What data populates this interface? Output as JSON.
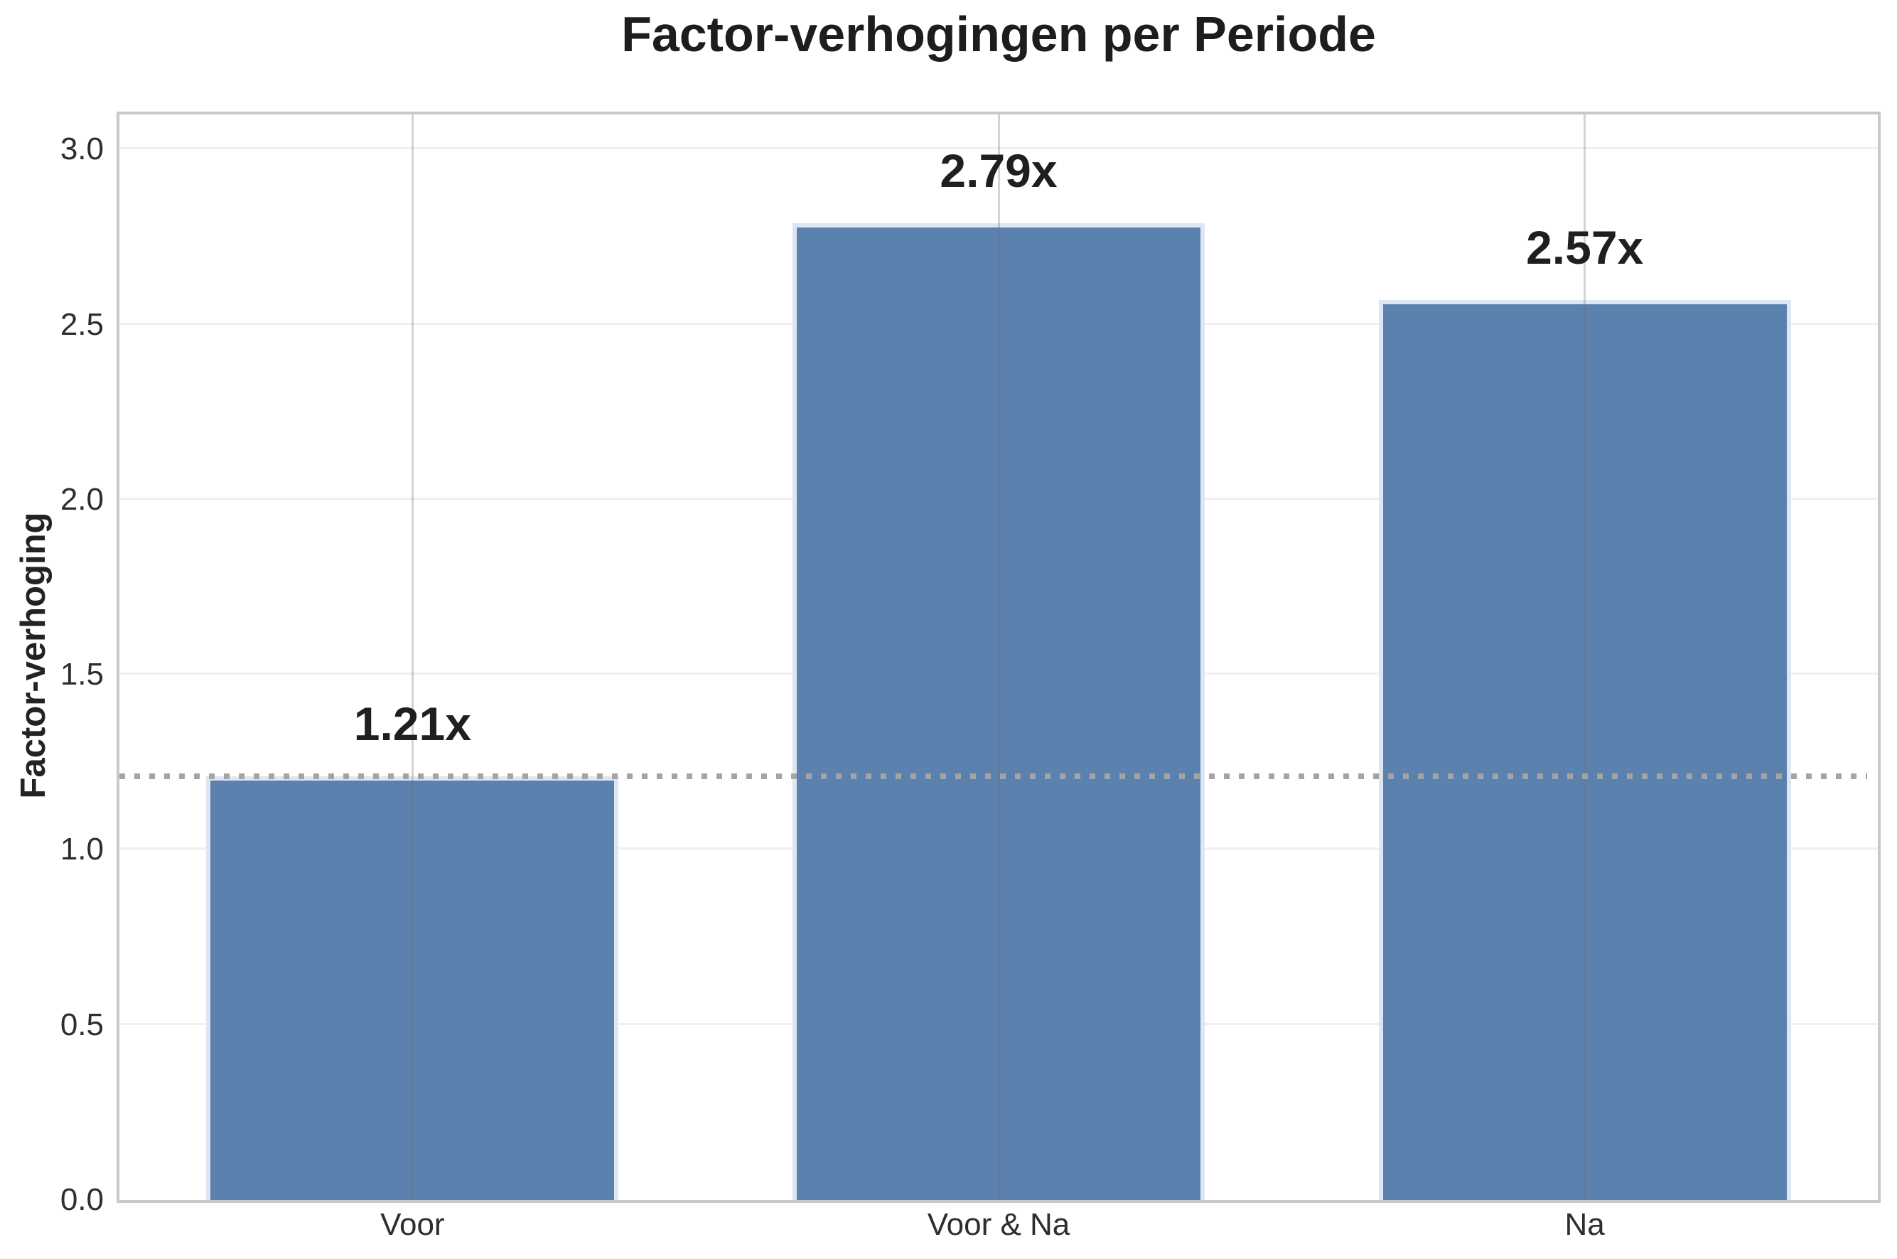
{
  "chart_data": {
    "type": "bar",
    "title": "Factor-verhogingen per Periode",
    "ylabel": "Factor-verhoging",
    "xlabel": "",
    "categories": [
      "Voor",
      "Voor & Na",
      "Na"
    ],
    "values": [
      1.21,
      2.79,
      2.57
    ],
    "bar_labels": [
      "1.21x",
      "2.79x",
      "2.57x"
    ],
    "reference_line": 1.21,
    "ylim": [
      0,
      3.1
    ],
    "yticks": [
      0.0,
      0.5,
      1.0,
      1.5,
      2.0,
      2.5,
      3.0
    ],
    "ytick_labels": [
      "0.0",
      "0.5",
      "1.0",
      "1.5",
      "2.0",
      "2.5",
      "3.0"
    ],
    "grid": true,
    "legend": false,
    "colors": {
      "bar_fill": "#5b82af",
      "bar_edge": "#dde6f2",
      "reference_line": "#a4a4a4",
      "spine": "#c9c9c9",
      "grid_horizontal": "#efefef",
      "title_text": "#1d1d1d",
      "tick_text": "#2e2e2e"
    }
  }
}
